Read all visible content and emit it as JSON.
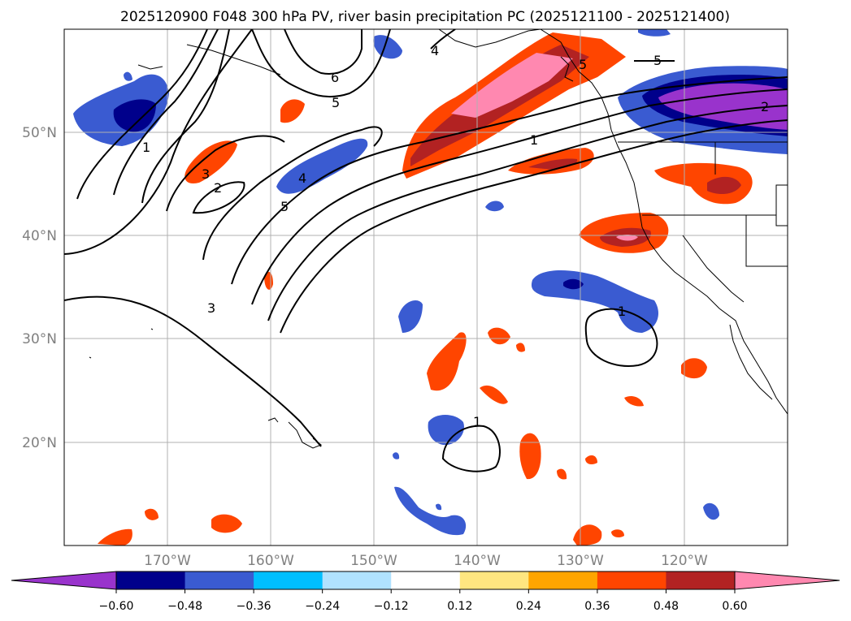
{
  "title": "2025120900 F048 300 hPa PV, river basin precipitation PC (2025121100 - 2025121400)",
  "lat_labels": [
    "50°N",
    "40°N",
    "30°N",
    "20°N"
  ],
  "lon_labels": [
    "170°W",
    "160°W",
    "150°W",
    "140°W",
    "130°W",
    "120°W"
  ],
  "colorbar": {
    "ticks": [
      "−0.60",
      "−0.48",
      "−0.36",
      "−0.24",
      "−0.12",
      "0.12",
      "0.24",
      "0.36",
      "0.48",
      "0.60"
    ],
    "colors": [
      "#9933cc",
      "#00008b",
      "#3a5bd1",
      "#00bfff",
      "#b0e2ff",
      "#ffffff",
      "#ffe680",
      "#ffa500",
      "#ff4500",
      "#b22222",
      "#ff88b0"
    ]
  },
  "contour_labels": [
    "1",
    "2",
    "3",
    "4",
    "5",
    "6",
    "4",
    "5",
    "1",
    "5",
    "2",
    "1",
    "1",
    "3",
    "5"
  ],
  "chart_data": {
    "type": "map",
    "projection": "plate-carree",
    "lon_range_deg": [
      -180,
      -110
    ],
    "lat_range_deg": [
      10,
      60
    ],
    "fields": {
      "contours": "300 hPa PV",
      "filled": "river basin precipitation PC"
    }
  }
}
